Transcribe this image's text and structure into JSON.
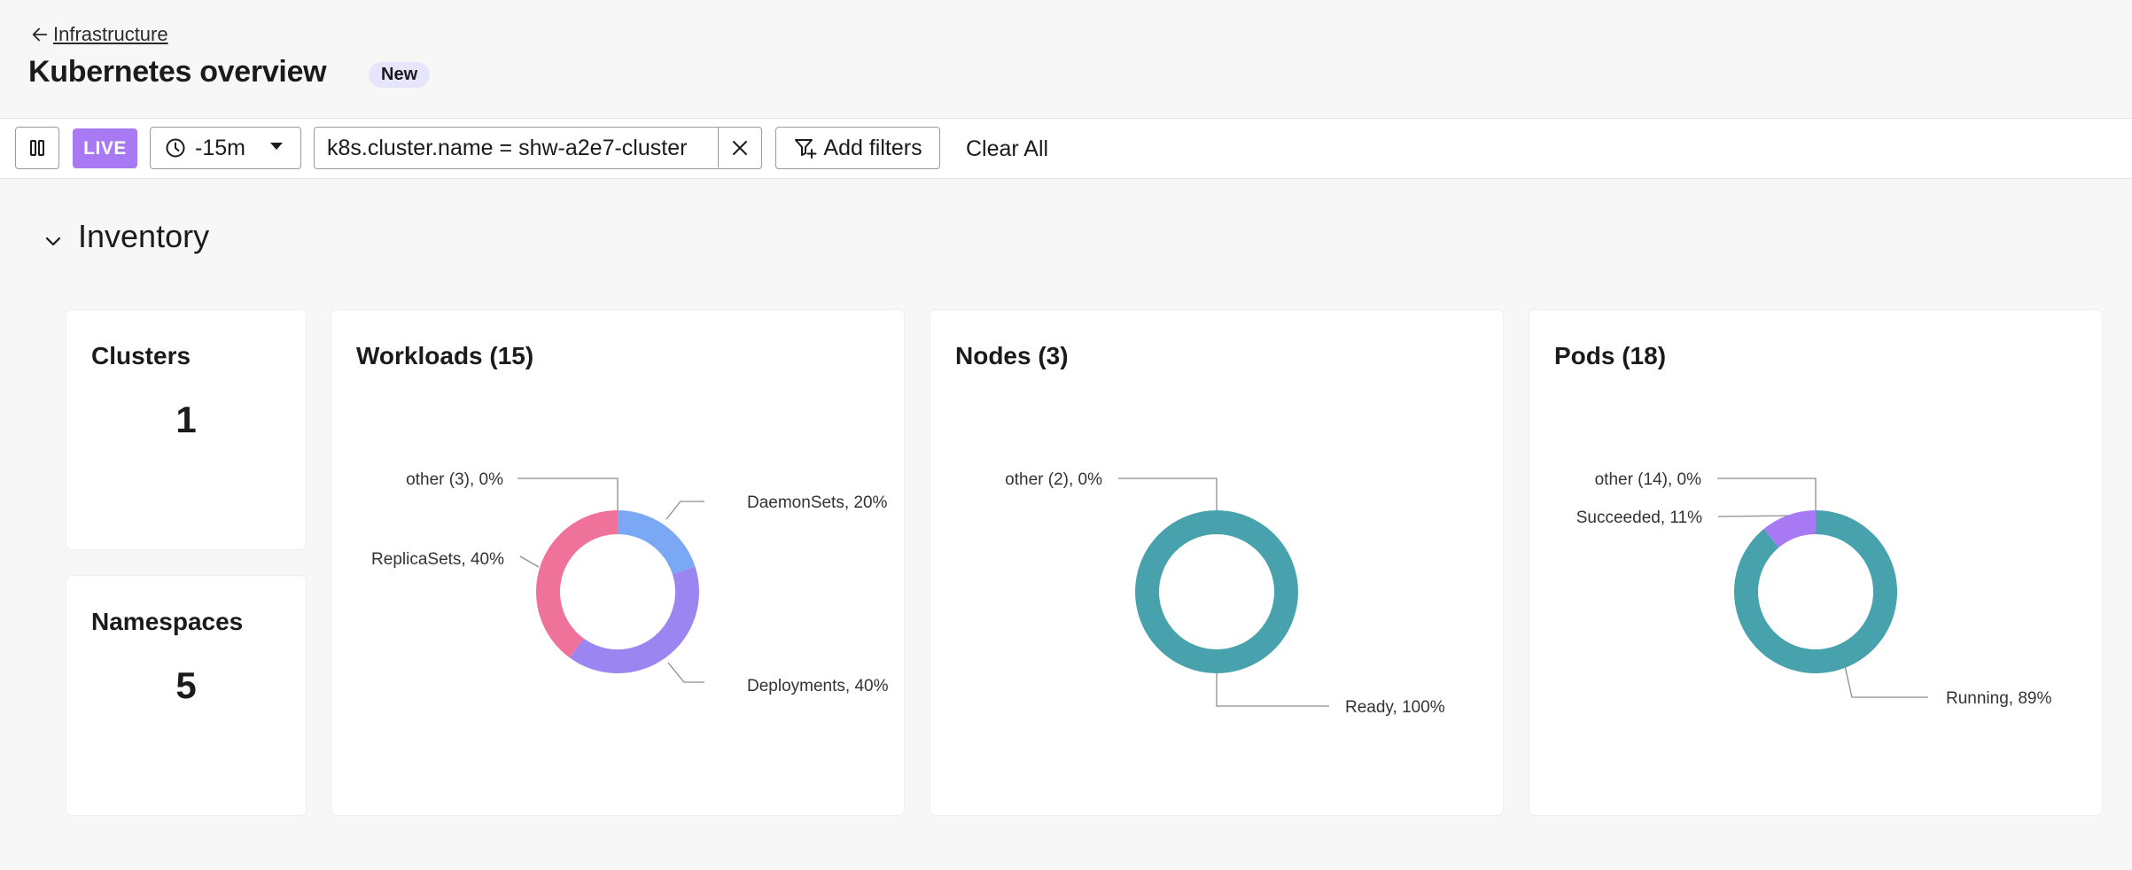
{
  "header": {
    "back_label": "Infrastructure",
    "title": "Kubernetes overview",
    "badge": "New"
  },
  "toolbar": {
    "live_label": "LIVE",
    "time_range": "-15m",
    "filter": "k8s.cluster.name = shw-a2e7-cluster",
    "add_filters_label": "Add filters",
    "clear_all_label": "Clear All"
  },
  "section": {
    "title": "Inventory"
  },
  "cards": {
    "clusters": {
      "title": "Clusters",
      "value": "1"
    },
    "namespaces": {
      "title": "Namespaces",
      "value": "5"
    },
    "workloads": {
      "title": "Workloads (15)",
      "labels": {
        "other": "other (3), 0%",
        "daemonsets": "DaemonSets, 20%",
        "replicasets": "ReplicaSets, 40%",
        "deployments": "Deployments, 40%"
      }
    },
    "nodes": {
      "title": "Nodes (3)",
      "labels": {
        "other": "other (2), 0%",
        "ready": "Ready, 100%"
      }
    },
    "pods": {
      "title": "Pods (18)",
      "labels": {
        "other": "other (14), 0%",
        "succeeded": "Succeeded, 11%",
        "running": "Running, 89%"
      }
    }
  },
  "chart_data": [
    {
      "type": "pie",
      "title": "Workloads (15)",
      "categories": [
        "DaemonSets",
        "Deployments",
        "ReplicaSets",
        "other (3)"
      ],
      "values": [
        20,
        40,
        40,
        0
      ],
      "colors": [
        "#7aa8f4",
        "#9b85f0",
        "#ee7299",
        "#cccccc"
      ]
    },
    {
      "type": "pie",
      "title": "Nodes (3)",
      "categories": [
        "Ready",
        "other (2)"
      ],
      "values": [
        100,
        0
      ],
      "colors": [
        "#47a2ad",
        "#cccccc"
      ]
    },
    {
      "type": "pie",
      "title": "Pods (18)",
      "categories": [
        "Running",
        "Succeeded",
        "other (14)"
      ],
      "values": [
        89,
        11,
        0
      ],
      "colors": [
        "#47a2ad",
        "#a77af4",
        "#cccccc"
      ]
    }
  ]
}
